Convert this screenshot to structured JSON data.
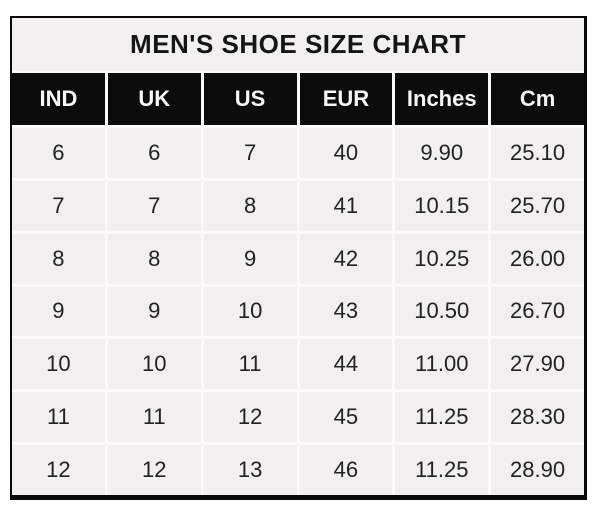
{
  "chart_data": {
    "type": "table",
    "title": "MEN'S SHOE SIZE CHART",
    "columns": [
      "IND",
      "UK",
      "US",
      "EUR",
      "Inches",
      "Cm"
    ],
    "rows": [
      [
        "6",
        "6",
        "7",
        "40",
        "9.90",
        "25.10"
      ],
      [
        "7",
        "7",
        "8",
        "41",
        "10.15",
        "25.70"
      ],
      [
        "8",
        "8",
        "9",
        "42",
        "10.25",
        "26.00"
      ],
      [
        "9",
        "9",
        "10",
        "43",
        "10.50",
        "26.70"
      ],
      [
        "10",
        "10",
        "11",
        "44",
        "11.00",
        "27.90"
      ],
      [
        "11",
        "11",
        "12",
        "45",
        "11.25",
        "28.30"
      ],
      [
        "12",
        "12",
        "13",
        "46",
        "11.25",
        "28.90"
      ]
    ],
    "colors": {
      "outer_border": "#0a0a0a",
      "title_background": "#f2f1ef",
      "header_background": "#0c0c0b",
      "header_text": "#f7f7f7",
      "cell_background": "#f1f0ee",
      "cell_text": "#222222",
      "gridline": "#fbfaf8",
      "page_background": "#ffffff"
    }
  }
}
